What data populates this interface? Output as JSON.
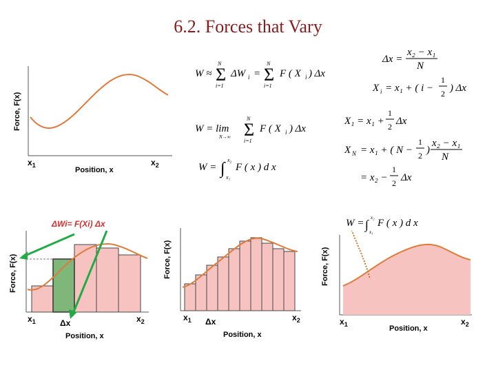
{
  "title": "6.2. Forces that Vary",
  "graph_labels": {
    "force_axis": "Force, F(x)",
    "force_axis_alt": "Force, F(x)",
    "position_axis": "Position, x",
    "x1": "x",
    "x1_sub": "1",
    "x2": "x",
    "x2_sub": "2",
    "dx": "Δx"
  },
  "annotation": "ΔWi= F(Xi) Δx",
  "equations": {
    "sum_approx": "W ≈ Σ ΔWi = Σ F(Xi) Δx",
    "limit": "W = lim N→∞ Σ F(Xi) Δx",
    "integral": "W = ∫ F(x) dx",
    "dx_def": "Δx = (x2 − x1)/N",
    "xi_def": "Xi = x1 + (i − 1/2) Δx",
    "x1_def": "X1 = x1 + 1/2 Δx",
    "xn_def": "XN = x1 + (N − 1/2)(x2 − x1)/N",
    "xn_simpl": "= x2 − 1/2 Δx",
    "integral2": "W = ∫ F(x) dx"
  },
  "colors": {
    "title": "#8b1a1a",
    "curve": "#e07b3a",
    "bar_fill": "#f7c3c0",
    "highlight_fill": "#7fb77a",
    "arrow": "#22aa44",
    "annotation": "#d03030"
  }
}
